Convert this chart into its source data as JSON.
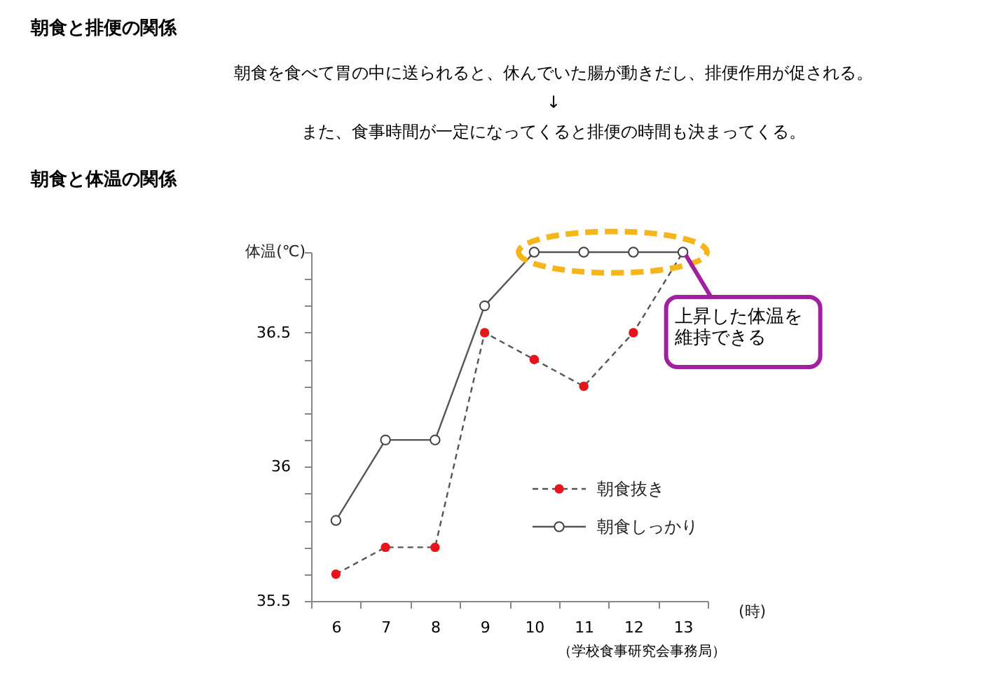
{
  "chart_data": {
    "type": "line",
    "title": "朝食と体温の関係",
    "ylabel": "体温(℃)",
    "xlabel": "(時)",
    "categories": [
      "6",
      "7",
      "8",
      "9",
      "10",
      "11",
      "12",
      "13"
    ],
    "series": [
      {
        "name": "朝食抜き",
        "color": "#e8141c",
        "line_style": "dashed",
        "values": [
          35.6,
          35.7,
          35.7,
          36.5,
          36.4,
          36.3,
          36.5,
          36.8
        ]
      },
      {
        "name": "朝食しっかり",
        "color": "#404040",
        "line_style": "solid",
        "values": [
          35.8,
          36.1,
          36.1,
          36.6,
          36.8,
          36.8,
          36.8,
          36.8
        ]
      }
    ],
    "ylim": [
      35.5,
      36.8
    ],
    "yticks": [
      35.5,
      {
        "value": 35.6,
        "label": null
      },
      {
        "value": 35.7,
        "label": null
      },
      {
        "value": 35.8,
        "label": null
      },
      {
        "value": 35.9,
        "label": null
      },
      36,
      {
        "value": 36.1,
        "label": null
      },
      {
        "value": 36.2,
        "label": null
      },
      {
        "value": 36.3,
        "label": null
      },
      {
        "value": 36.4,
        "label": null
      },
      36.5,
      {
        "value": 36.6,
        "label": null
      },
      {
        "value": 36.7,
        "label": null
      },
      {
        "value": 36.8,
        "label": null
      }
    ],
    "marker": "circle",
    "grid": false,
    "legend": "bottom right",
    "annotations": [
      "朝食と排便の関係",
      "朝食を食べて胃の中に送られると、休んでいた腸が動きだし、排便作用が促される。",
      "↓",
      "また、食事時間が一定になってくると排便の時間も決まってくる。",
      "（学校食事研究会事務局）",
      {
        "text": "上昇した体温を維持できる",
        "x": "13",
        "y": 36.8
      }
    ]
  }
}
